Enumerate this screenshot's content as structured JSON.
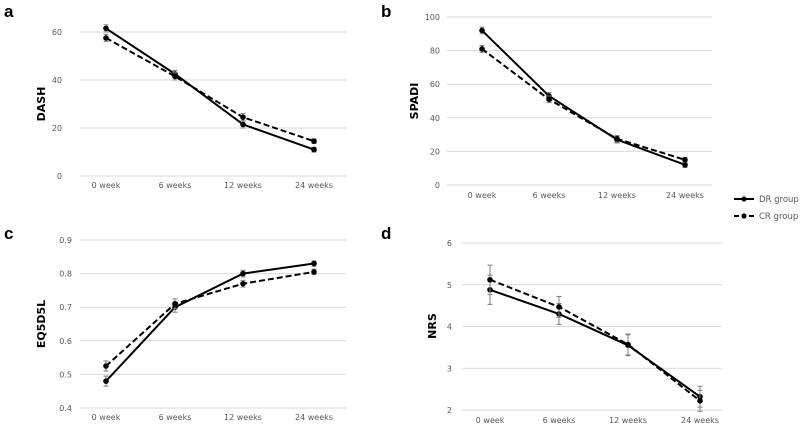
{
  "chart_data": [
    {
      "type": "line",
      "panel": "a",
      "ylabel": "DASH",
      "categories": [
        "0 week",
        "6 weeks",
        "12 weeks",
        "24 weeks"
      ],
      "ylim": [
        0,
        60
      ],
      "yticks": [
        0,
        20,
        40,
        60
      ],
      "series": [
        {
          "name": "DR group",
          "values": [
            61.5,
            42.5,
            21.5,
            11.0
          ],
          "errors": [
            1.5,
            1.5,
            1.5,
            1.0
          ]
        },
        {
          "name": "CR group",
          "values": [
            57.5,
            41.5,
            24.5,
            14.5
          ],
          "errors": [
            1.5,
            1.5,
            1.5,
            1.0
          ]
        }
      ]
    },
    {
      "type": "line",
      "panel": "b",
      "ylabel": "SPADI",
      "categories": [
        "0 week",
        "6 weeks",
        "12 weeks",
        "24 weeks"
      ],
      "ylim": [
        0,
        100
      ],
      "yticks": [
        0,
        20,
        40,
        60,
        80,
        100
      ],
      "series": [
        {
          "name": "DR group",
          "values": [
            92.0,
            53.0,
            27.0,
            12.0
          ],
          "errors": [
            2.0,
            2.0,
            2.0,
            1.5
          ]
        },
        {
          "name": "CR group",
          "values": [
            81.0,
            51.0,
            27.5,
            15.0
          ],
          "errors": [
            2.0,
            2.0,
            2.0,
            1.5
          ]
        }
      ]
    },
    {
      "type": "line",
      "panel": "c",
      "ylabel": "EQ5D5L",
      "categories": [
        "0 week",
        "6 weeks",
        "12 weeks",
        "24 weeks"
      ],
      "ylim": [
        0.4,
        0.9
      ],
      "yticks": [
        "0.4",
        "0.5",
        "0.6",
        "0.7",
        "0.8",
        "0.9"
      ],
      "series": [
        {
          "name": "DR group",
          "values": [
            0.48,
            0.7,
            0.8,
            0.83
          ],
          "errors": [
            0.015,
            0.015,
            0.01,
            0.008
          ]
        },
        {
          "name": "CR group",
          "values": [
            0.525,
            0.71,
            0.77,
            0.805
          ],
          "errors": [
            0.015,
            0.015,
            0.01,
            0.008
          ]
        }
      ]
    },
    {
      "type": "line",
      "panel": "d",
      "ylabel": "NRS",
      "categories": [
        "0 week",
        "6 weeks",
        "12 weeks",
        "24 weeks"
      ],
      "ylim": [
        2,
        6
      ],
      "yticks": [
        2,
        3,
        4,
        5,
        6
      ],
      "series": [
        {
          "name": "DR group",
          "values": [
            4.88,
            4.3,
            3.55,
            2.32
          ],
          "errors": [
            0.35,
            0.25,
            0.25,
            0.25
          ]
        },
        {
          "name": "CR group",
          "values": [
            5.12,
            4.47,
            3.57,
            2.22
          ],
          "errors": [
            0.35,
            0.25,
            0.25,
            0.25
          ]
        }
      ]
    }
  ],
  "legend": {
    "position": "right",
    "entries": [
      {
        "label": "DR group",
        "style": "solid"
      },
      {
        "label": "CR group",
        "style": "dashed"
      }
    ]
  },
  "colors": {
    "line": "#000000",
    "grid": "#d9d9d9",
    "errorbar": "#7f7f7f",
    "text": "#595959"
  }
}
